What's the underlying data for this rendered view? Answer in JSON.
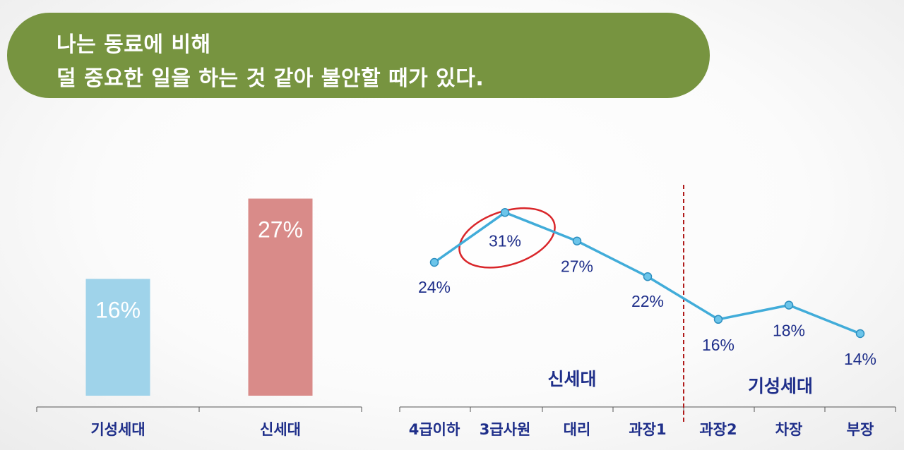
{
  "header": {
    "line1": "나는 동료에 비해",
    "line2": "덜 중요한 일을 하는 것 같아 불안할 때가 있다.",
    "color": "#779440"
  },
  "chart_data": [
    {
      "type": "bar",
      "categories": [
        "기성세대",
        "신세대"
      ],
      "values": [
        16,
        27
      ],
      "value_labels": [
        "16%",
        "27%"
      ],
      "colors": [
        "#9fd3ea",
        "#d98b89"
      ],
      "unit": "%"
    },
    {
      "type": "line",
      "categories": [
        "4급이하",
        "3급사원",
        "대리",
        "과장1",
        "과장2",
        "차장",
        "부장"
      ],
      "values": [
        24,
        31,
        27,
        22,
        16,
        18,
        14
      ],
      "value_labels": [
        "24%",
        "31%",
        "27%",
        "22%",
        "16%",
        "18%",
        "14%"
      ],
      "unit": "%",
      "line_color": "#41acd9",
      "groups": [
        {
          "label": "신세대",
          "categories": [
            "4급이하",
            "3급사원",
            "대리",
            "과장1"
          ]
        },
        {
          "label": "기성세대",
          "categories": [
            "과장2",
            "차장",
            "부장"
          ]
        }
      ],
      "divider_color": "#b01b1b",
      "highlight": {
        "category": "3급사원",
        "color": "#d9262a"
      }
    }
  ]
}
